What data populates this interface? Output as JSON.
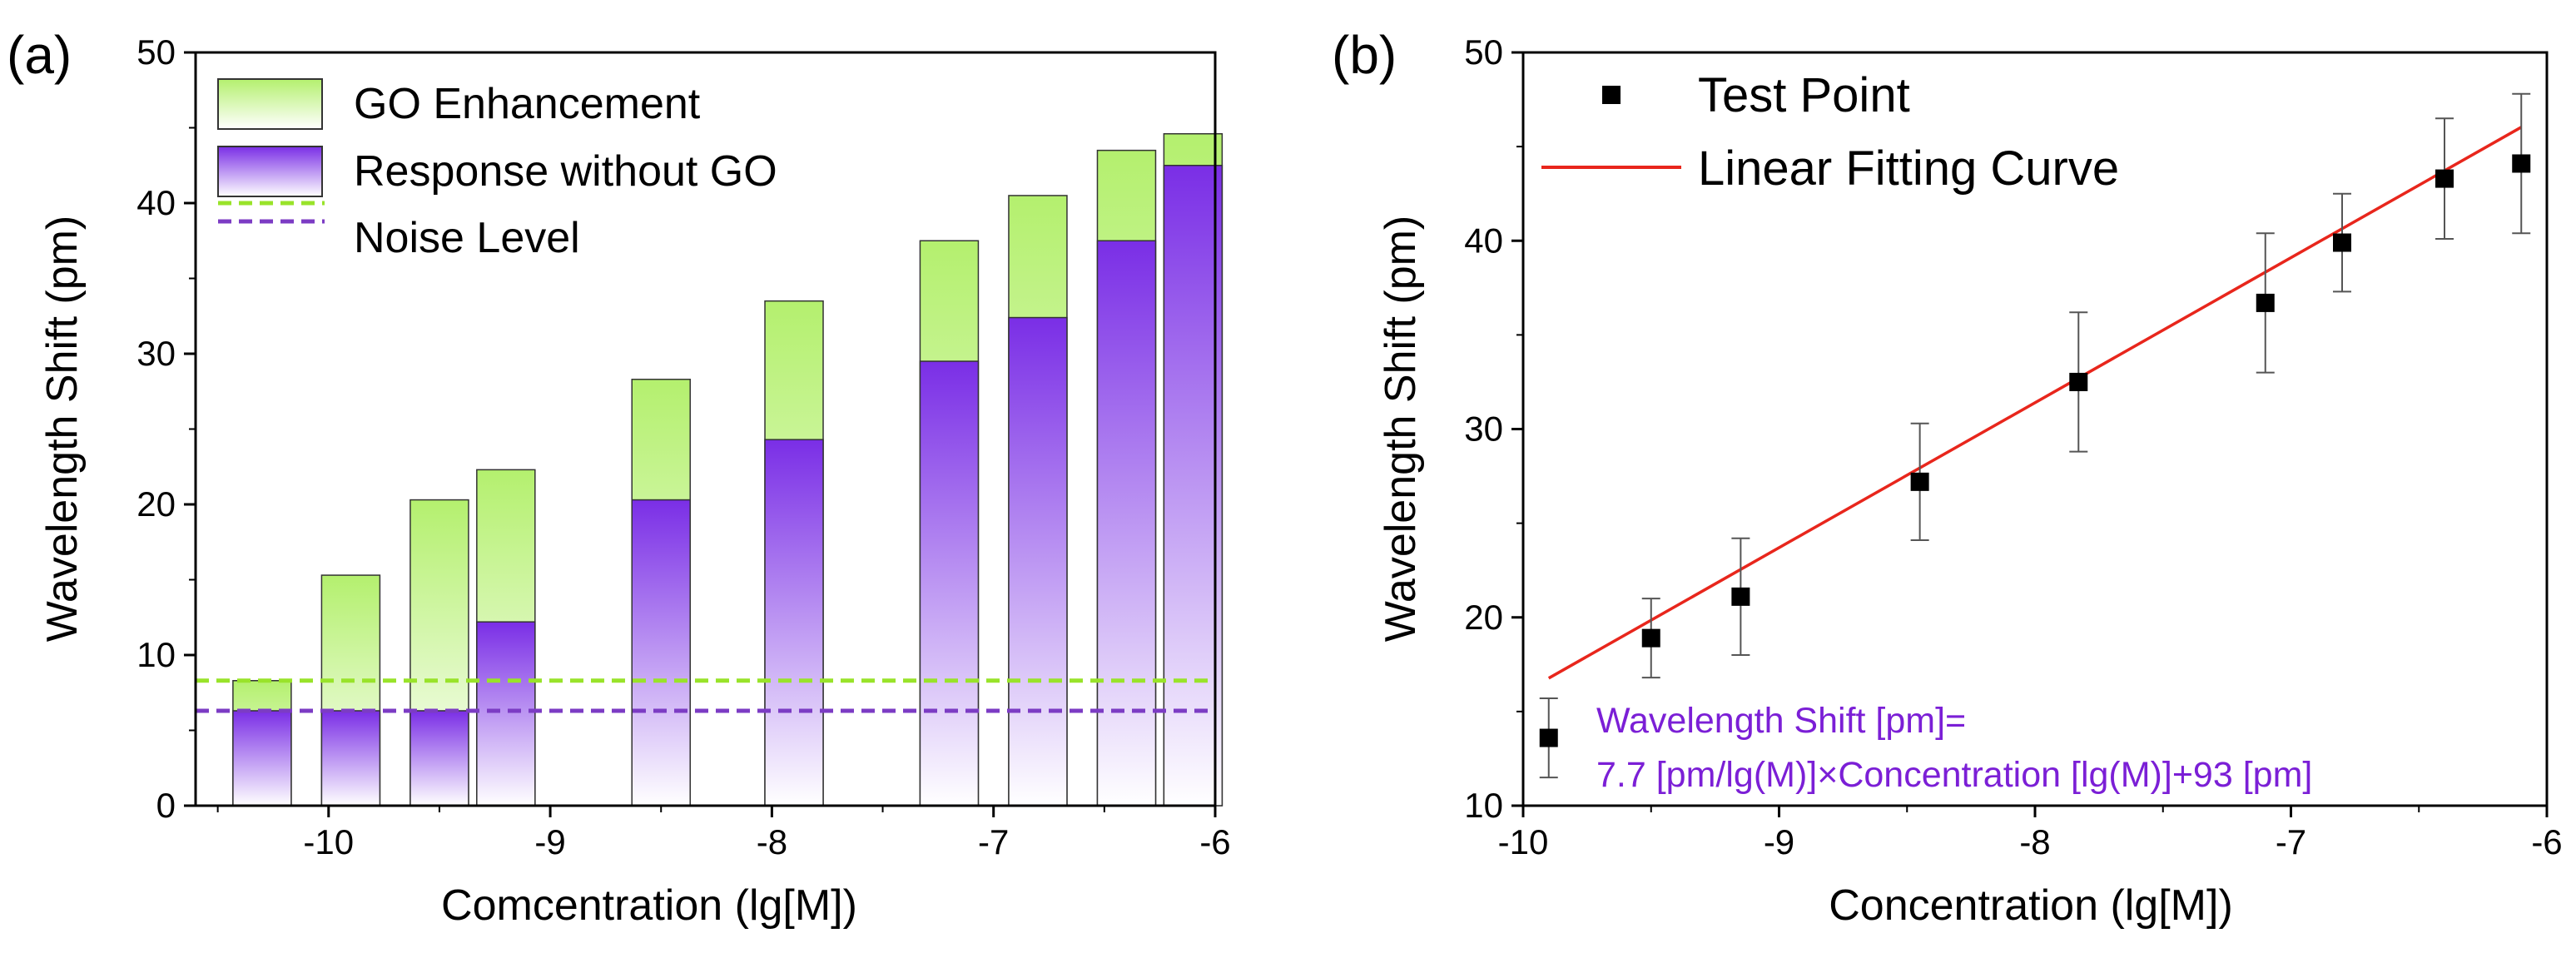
{
  "chart_data": [
    {
      "panel_label": "(a)",
      "type": "bar",
      "xlabel": "Comcentration (lg[M])",
      "ylabel": "Wavelength Shift (pm)",
      "xlim": [
        -10.6,
        -6
      ],
      "ylim": [
        0,
        50
      ],
      "xticks": [
        -10,
        -9,
        -8,
        -7,
        -6
      ],
      "yticks": [
        0,
        10,
        20,
        30,
        40,
        50
      ],
      "x": [
        -10.3,
        -9.9,
        -9.5,
        -9.2,
        -8.5,
        -7.9,
        -7.2,
        -6.8,
        -6.4,
        -6.1
      ],
      "series": [
        {
          "name": "GO Enhancement",
          "values": [
            8.3,
            15.3,
            20.3,
            22.3,
            28.3,
            33.5,
            37.5,
            40.5,
            43.5,
            44.6
          ]
        },
        {
          "name": "Response without GO",
          "values": [
            6.3,
            6.3,
            6.3,
            12.2,
            20.3,
            24.3,
            29.5,
            32.4,
            37.5,
            42.5
          ]
        }
      ],
      "reference_lines": [
        {
          "name": "Noise Level",
          "value": 8.3,
          "color": "#99e32a"
        },
        {
          "name": "Noise Level",
          "value": 6.3,
          "color": "#7c3cc4"
        }
      ],
      "legend": [
        {
          "label": "GO Enhancement"
        },
        {
          "label": "Response without GO"
        },
        {
          "label": "Noise Level"
        }
      ],
      "legend_position": "top-left",
      "colors": {
        "green": "#b4f06e",
        "purple": "#7a2ee6",
        "green_line": "#99e32a",
        "purple_line": "#7c3cc4"
      }
    },
    {
      "panel_label": "(b)",
      "type": "scatter",
      "xlabel": "Concentration (lg[M])",
      "ylabel": "Wavelength Shift (pm)",
      "xlim": [
        -10,
        -6
      ],
      "ylim": [
        10,
        50
      ],
      "xticks": [
        -10,
        -9,
        -8,
        -7,
        -6
      ],
      "yticks": [
        10,
        20,
        30,
        40,
        50
      ],
      "points": [
        {
          "x": -9.9,
          "y": 13.6,
          "err": 2.1
        },
        {
          "x": -9.5,
          "y": 18.9,
          "err": 2.1
        },
        {
          "x": -9.15,
          "y": 21.1,
          "err": 3.1
        },
        {
          "x": -8.45,
          "y": 27.2,
          "err": 3.1
        },
        {
          "x": -7.83,
          "y": 32.5,
          "err": 3.7
        },
        {
          "x": -7.1,
          "y": 36.7,
          "err": 3.7
        },
        {
          "x": -6.8,
          "y": 39.9,
          "err": 2.6
        },
        {
          "x": -6.4,
          "y": 43.3,
          "err": 3.2
        },
        {
          "x": -6.1,
          "y": 44.1,
          "err": 3.7
        }
      ],
      "fit": {
        "slope": 7.7,
        "intercept": 93,
        "x_range": [
          -9.9,
          -6.1
        ],
        "color": "#e8261c"
      },
      "legend": [
        {
          "label": "Test Point"
        },
        {
          "label": "Linear Fitting Curve"
        }
      ],
      "legend_position": "top-left",
      "equation_line1": "Wavelength Shift [pm]=",
      "equation_line2": "7.7 [pm/lg(M)]×Concentration [lg(M)]+93 [pm]",
      "equation_color": "#7b1fd6"
    }
  ]
}
